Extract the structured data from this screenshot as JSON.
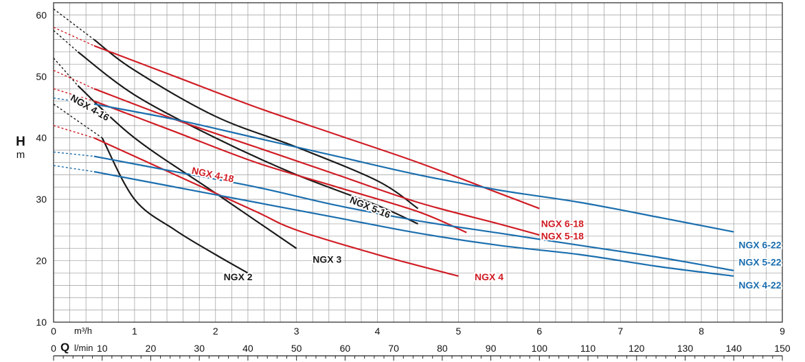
{
  "chart_data": {
    "type": "line",
    "y_axis": {
      "symbol": "H",
      "unit": "m",
      "min": 10,
      "max": 62,
      "ticks": [
        10,
        20,
        30,
        40,
        50,
        60
      ]
    },
    "x_axis_top": {
      "unit": "m³/h",
      "min": 0,
      "max": 9,
      "ticks": [
        0,
        1,
        2,
        3,
        4,
        5,
        6,
        7,
        8,
        9
      ]
    },
    "x_axis_bottom": {
      "symbol": "Q",
      "unit": "l/min",
      "min": 0,
      "max": 150,
      "ticks": [
        0,
        10,
        20,
        30,
        40,
        50,
        60,
        70,
        80,
        90,
        100,
        110,
        120,
        130,
        140,
        150
      ]
    },
    "grid": true,
    "series": [
      {
        "name": "NGX 2",
        "color": "#1a1a1a",
        "label_at": [
          2.1,
          16.8
        ],
        "dashed": [
          [
            0,
            45.5
          ],
          [
            0.6,
            40
          ]
        ],
        "solid": [
          [
            0.6,
            40
          ],
          [
            1.0,
            30
          ],
          [
            1.5,
            25
          ],
          [
            2.0,
            21
          ],
          [
            2.4,
            18
          ]
        ]
      },
      {
        "name": "NGX 3",
        "color": "#1a1a1a",
        "label_at": [
          3.2,
          19.7
        ],
        "dashed": [
          [
            0,
            53
          ],
          [
            0.3,
            48.5
          ]
        ],
        "solid": [
          [
            0.3,
            48.5
          ],
          [
            1.0,
            40
          ],
          [
            2.0,
            31
          ],
          [
            3.0,
            22
          ]
        ]
      },
      {
        "name": "NGX 4",
        "color": "#d01c24",
        "label_at": [
          5.2,
          16.8
        ],
        "dashed": [
          [
            0,
            42
          ],
          [
            0.5,
            40
          ]
        ],
        "solid": [
          [
            0.5,
            40
          ],
          [
            1.5,
            34
          ],
          [
            2.5,
            28
          ],
          [
            3.0,
            25
          ],
          [
            4.0,
            21
          ],
          [
            5.0,
            17.5
          ]
        ]
      },
      {
        "name": "NGX 4-16",
        "color": "#1a1a1a",
        "label_at": [
          0.2,
          46.2
        ],
        "label_rotate": 30,
        "dashed": [
          [
            0,
            57.5
          ],
          [
            0.3,
            54
          ]
        ],
        "solid": [
          [
            0.3,
            54
          ],
          [
            1.0,
            47
          ],
          [
            2.0,
            40
          ],
          [
            3.0,
            34
          ],
          [
            4.0,
            29
          ],
          [
            4.5,
            26
          ]
        ]
      },
      {
        "name": "NGX 5-16",
        "color": "#1a1a1a",
        "label_at": [
          3.65,
          29.5
        ],
        "label_rotate": 22,
        "dashed": [
          [
            0,
            61
          ],
          [
            0.5,
            56
          ]
        ],
        "solid": [
          [
            0.5,
            56
          ],
          [
            1.0,
            51
          ],
          [
            2.0,
            43.5
          ],
          [
            3.0,
            38.5
          ],
          [
            4.0,
            33
          ],
          [
            4.5,
            28.5
          ]
        ]
      },
      {
        "name": "NGX 4-18",
        "color": "#d01c24",
        "label_at": [
          1.7,
          34.2
        ],
        "label_rotate": 12,
        "dashed": [
          [
            0,
            48
          ],
          [
            0.5,
            46
          ]
        ],
        "solid": [
          [
            0.5,
            46
          ],
          [
            1.5,
            41
          ],
          [
            2.5,
            36
          ],
          [
            3.5,
            32
          ],
          [
            4.5,
            28
          ],
          [
            5.1,
            24.6
          ]
        ]
      },
      {
        "name": "NGX 5-18",
        "color": "#d01c24",
        "label_at": [
          6.02,
          23.5
        ],
        "dashed": [
          [
            0,
            51
          ],
          [
            0.5,
            48
          ]
        ],
        "solid": [
          [
            0.5,
            48
          ],
          [
            1.5,
            43
          ],
          [
            2.5,
            38.5
          ],
          [
            3.5,
            34
          ],
          [
            4.5,
            29.5
          ],
          [
            5.5,
            26
          ],
          [
            6.0,
            24.2
          ]
        ]
      },
      {
        "name": "NGX 6-18",
        "color": "#d01c24",
        "label_at": [
          6.02,
          25.5
        ],
        "dashed": [
          [
            0,
            58
          ],
          [
            0.5,
            55
          ]
        ],
        "solid": [
          [
            0.5,
            55
          ],
          [
            1.5,
            50
          ],
          [
            2.5,
            45
          ],
          [
            3.5,
            40.5
          ],
          [
            4.5,
            36
          ],
          [
            5.5,
            31
          ],
          [
            6.0,
            28.5
          ]
        ]
      },
      {
        "name": "NGX 4-22",
        "color": "#1a6eae",
        "label_at": [
          8.46,
          15.5
        ],
        "dashed": [
          [
            0,
            35.5
          ],
          [
            0.5,
            34.5
          ]
        ],
        "solid": [
          [
            0.5,
            34.5
          ],
          [
            1.5,
            32
          ],
          [
            2.5,
            29.5
          ],
          [
            3.5,
            27
          ],
          [
            4.5,
            24.5
          ],
          [
            5.5,
            22.5
          ],
          [
            6.5,
            21
          ],
          [
            7.5,
            19
          ],
          [
            8.4,
            17.5
          ]
        ]
      },
      {
        "name": "NGX 5-22",
        "color": "#1a6eae",
        "label_at": [
          8.46,
          19.2
        ],
        "dashed": [
          [
            0,
            37.7
          ],
          [
            0.5,
            37
          ]
        ],
        "solid": [
          [
            0.5,
            37
          ],
          [
            1.5,
            34.5
          ],
          [
            2.5,
            32
          ],
          [
            3.5,
            29
          ],
          [
            4.5,
            26.5
          ],
          [
            5.5,
            24.5
          ],
          [
            6.5,
            22.5
          ],
          [
            7.5,
            20.5
          ],
          [
            8.4,
            18.4
          ]
        ]
      },
      {
        "name": "NGX 6-22",
        "color": "#1a6eae",
        "label_at": [
          8.46,
          22.0
        ],
        "dashed": [
          [
            0,
            46.5
          ],
          [
            0.5,
            45.5
          ]
        ],
        "solid": [
          [
            0.5,
            45.5
          ],
          [
            1.5,
            43
          ],
          [
            2.5,
            40
          ],
          [
            3.5,
            37
          ],
          [
            4.5,
            34
          ],
          [
            5.5,
            31.5
          ],
          [
            6.5,
            29.5
          ],
          [
            7.5,
            27
          ],
          [
            8.4,
            24.7
          ]
        ]
      }
    ]
  }
}
